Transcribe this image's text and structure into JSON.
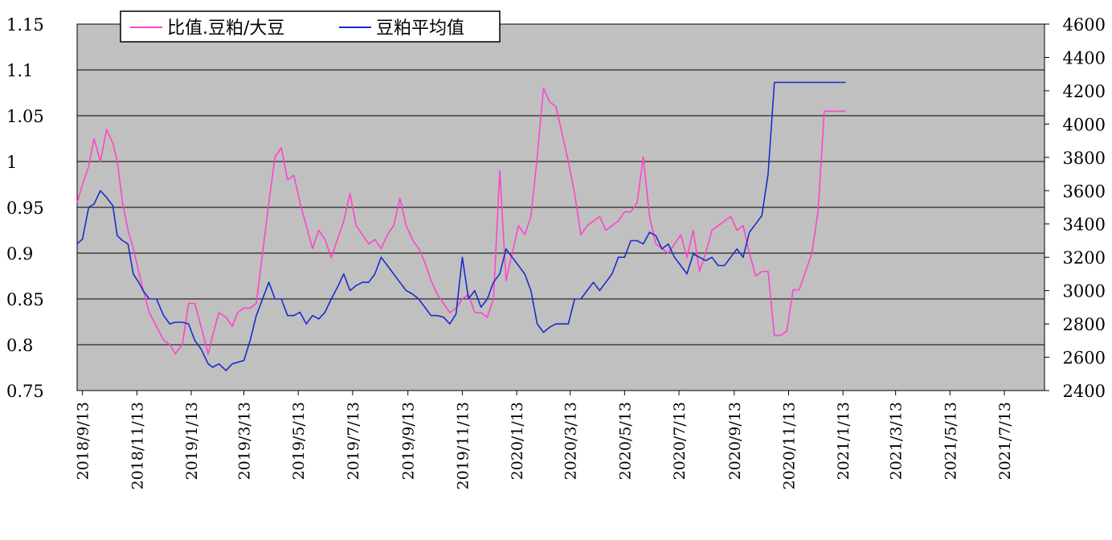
{
  "chart_data": {
    "type": "line",
    "title": "",
    "xlabel": "",
    "ylabel_left": "",
    "ylabel_right": "",
    "x_range": [
      "2018-09-07",
      "2021-08-27"
    ],
    "x_ticks": [
      "2018/9/13",
      "2018/11/13",
      "2019/1/13",
      "2019/3/13",
      "2019/5/13",
      "2019/7/13",
      "2019/9/13",
      "2019/11/13",
      "2020/1/13",
      "2020/3/13",
      "2020/5/13",
      "2020/7/13",
      "2020/9/13",
      "2020/11/13",
      "2021/1/13",
      "2021/3/13",
      "2021/5/13",
      "2021/7/13"
    ],
    "y_left": {
      "range": [
        0.75,
        1.15
      ],
      "ticks": [
        "0.75",
        "0.8",
        "0.85",
        "0.9",
        "0.95",
        "1",
        "1.05",
        "1.1",
        "1.15"
      ]
    },
    "y_right": {
      "range": [
        2400,
        4600
      ],
      "ticks": [
        "2400",
        "2600",
        "2800",
        "3000",
        "3200",
        "3400",
        "3600",
        "3800",
        "4000",
        "4200",
        "4400",
        "4600"
      ]
    },
    "grid": true,
    "legend_position": "top-left",
    "colors": {
      "plot_bg": "#c0c0c0",
      "ratio_line": "#ff44cc",
      "price_line": "#1a2ccc"
    },
    "series": [
      {
        "name": "比值.豆粕/大豆",
        "axis": "left",
        "x": [
          "2018-09-07",
          "2018-09-13",
          "2018-09-20",
          "2018-09-26",
          "2018-10-03",
          "2018-10-10",
          "2018-10-17",
          "2018-10-22",
          "2018-10-28",
          "2018-11-03",
          "2018-11-09",
          "2018-11-15",
          "2018-11-20",
          "2018-11-27",
          "2018-12-05",
          "2018-12-13",
          "2018-12-20",
          "2018-12-26",
          "2019-01-03",
          "2019-01-10",
          "2019-01-17",
          "2019-01-24",
          "2019-02-01",
          "2019-02-06",
          "2019-02-13",
          "2019-02-21",
          "2019-02-28",
          "2019-03-06",
          "2019-03-13",
          "2019-03-20",
          "2019-03-27",
          "2019-04-03",
          "2019-04-10",
          "2019-04-17",
          "2019-04-24",
          "2019-05-01",
          "2019-05-08",
          "2019-05-15",
          "2019-05-22",
          "2019-05-29",
          "2019-06-05",
          "2019-06-12",
          "2019-06-19",
          "2019-06-26",
          "2019-07-03",
          "2019-07-10",
          "2019-07-17",
          "2019-07-24",
          "2019-07-31",
          "2019-08-07",
          "2019-08-14",
          "2019-08-21",
          "2019-08-28",
          "2019-09-04",
          "2019-09-11",
          "2019-09-18",
          "2019-09-25",
          "2019-10-02",
          "2019-10-09",
          "2019-10-16",
          "2019-10-23",
          "2019-10-30",
          "2019-11-06",
          "2019-11-13",
          "2019-11-20",
          "2019-11-27",
          "2019-12-04",
          "2019-12-11",
          "2019-12-18",
          "2019-12-25",
          "2020-01-01",
          "2020-01-08",
          "2020-01-15",
          "2020-01-22",
          "2020-01-29",
          "2020-02-05",
          "2020-02-12",
          "2020-02-19",
          "2020-02-26",
          "2020-03-04",
          "2020-03-11",
          "2020-03-18",
          "2020-03-25",
          "2020-04-01",
          "2020-04-08",
          "2020-04-15",
          "2020-04-22",
          "2020-04-29",
          "2020-05-06",
          "2020-05-13",
          "2020-05-20",
          "2020-05-27",
          "2020-06-03",
          "2020-06-10",
          "2020-06-17",
          "2020-06-24",
          "2020-07-01",
          "2020-07-08",
          "2020-07-15",
          "2020-07-22",
          "2020-07-29",
          "2020-08-05",
          "2020-08-12",
          "2020-08-19",
          "2020-08-26",
          "2020-09-02",
          "2020-09-09",
          "2020-09-16",
          "2020-09-23",
          "2020-09-30",
          "2020-10-07",
          "2020-10-14",
          "2020-10-21",
          "2020-10-28",
          "2020-11-04",
          "2020-11-11",
          "2020-11-18",
          "2020-11-25",
          "2020-12-02",
          "2020-12-09",
          "2020-12-16",
          "2020-12-23",
          "2020-12-30",
          "2021-01-06",
          "2021-01-13",
          "2021-01-16"
        ],
        "values": [
          0.955,
          0.975,
          0.995,
          1.025,
          1.0,
          1.035,
          1.02,
          1.0,
          0.955,
          0.925,
          0.905,
          0.88,
          0.86,
          0.835,
          0.82,
          0.805,
          0.8,
          0.79,
          0.8,
          0.845,
          0.845,
          0.82,
          0.79,
          0.81,
          0.835,
          0.83,
          0.82,
          0.835,
          0.84,
          0.84,
          0.845,
          0.9,
          0.955,
          1.005,
          1.015,
          0.98,
          0.985,
          0.955,
          0.93,
          0.905,
          0.925,
          0.915,
          0.895,
          0.915,
          0.935,
          0.965,
          0.93,
          0.92,
          0.91,
          0.915,
          0.905,
          0.92,
          0.93,
          0.96,
          0.93,
          0.915,
          0.905,
          0.89,
          0.87,
          0.855,
          0.845,
          0.835,
          0.84,
          0.85,
          0.855,
          0.835,
          0.835,
          0.83,
          0.85,
          0.99,
          0.87,
          0.9,
          0.93,
          0.92,
          0.94,
          1.005,
          1.08,
          1.065,
          1.06,
          1.03,
          1.0,
          0.965,
          0.92,
          0.93,
          0.935,
          0.94,
          0.925,
          0.93,
          0.935,
          0.945,
          0.945,
          0.955,
          1.005,
          0.94,
          0.91,
          0.905,
          0.9,
          0.91,
          0.92,
          0.895,
          0.925,
          0.88,
          0.9,
          0.925,
          0.93,
          0.935,
          0.94,
          0.925,
          0.93,
          0.9,
          0.875,
          0.88,
          0.88,
          0.81,
          0.81,
          0.815,
          0.86,
          0.86,
          0.88,
          0.9,
          0.945,
          1.055,
          1.055,
          1.055,
          1.055,
          1.055
        ],
        "note_values": "ratio series read against left axis"
      },
      {
        "name": "豆粕平均值",
        "axis": "right",
        "x": [
          "2018-09-07",
          "2018-09-13",
          "2018-09-20",
          "2018-09-26",
          "2018-10-03",
          "2018-10-10",
          "2018-10-17",
          "2018-10-22",
          "2018-10-28",
          "2018-11-03",
          "2018-11-09",
          "2018-11-15",
          "2018-11-20",
          "2018-11-27",
          "2018-12-05",
          "2018-12-13",
          "2018-12-20",
          "2018-12-26",
          "2019-01-03",
          "2019-01-10",
          "2019-01-17",
          "2019-01-24",
          "2019-02-01",
          "2019-02-06",
          "2019-02-13",
          "2019-02-21",
          "2019-02-28",
          "2019-03-06",
          "2019-03-13",
          "2019-03-20",
          "2019-03-27",
          "2019-04-03",
          "2019-04-10",
          "2019-04-17",
          "2019-04-24",
          "2019-05-01",
          "2019-05-08",
          "2019-05-15",
          "2019-05-22",
          "2019-05-29",
          "2019-06-05",
          "2019-06-12",
          "2019-06-19",
          "2019-06-26",
          "2019-07-03",
          "2019-07-10",
          "2019-07-17",
          "2019-07-24",
          "2019-07-31",
          "2019-08-07",
          "2019-08-14",
          "2019-08-21",
          "2019-08-28",
          "2019-09-04",
          "2019-09-11",
          "2019-09-18",
          "2019-09-25",
          "2019-10-02",
          "2019-10-09",
          "2019-10-16",
          "2019-10-23",
          "2019-10-30",
          "2019-11-06",
          "2019-11-13",
          "2019-11-20",
          "2019-11-27",
          "2019-12-04",
          "2019-12-11",
          "2019-12-18",
          "2019-12-25",
          "2020-01-01",
          "2020-01-08",
          "2020-01-15",
          "2020-01-22",
          "2020-01-29",
          "2020-02-05",
          "2020-02-12",
          "2020-02-19",
          "2020-02-26",
          "2020-03-04",
          "2020-03-11",
          "2020-03-18",
          "2020-03-25",
          "2020-04-01",
          "2020-04-08",
          "2020-04-15",
          "2020-04-22",
          "2020-04-29",
          "2020-05-06",
          "2020-05-13",
          "2020-05-20",
          "2020-05-27",
          "2020-06-03",
          "2020-06-10",
          "2020-06-17",
          "2020-06-24",
          "2020-07-01",
          "2020-07-08",
          "2020-07-15",
          "2020-07-22",
          "2020-07-29",
          "2020-08-05",
          "2020-08-12",
          "2020-08-19",
          "2020-08-26",
          "2020-09-02",
          "2020-09-09",
          "2020-09-16",
          "2020-09-23",
          "2020-09-30",
          "2020-10-07",
          "2020-10-14",
          "2020-10-21",
          "2020-10-28",
          "2020-11-04",
          "2020-11-11",
          "2020-11-18",
          "2020-11-25",
          "2020-12-02",
          "2020-12-09",
          "2020-12-16",
          "2020-12-23",
          "2020-12-30",
          "2021-01-06",
          "2021-01-13",
          "2021-01-16"
        ],
        "values": [
          3280,
          3310,
          3500,
          3520,
          3600,
          3560,
          3510,
          3330,
          3300,
          3280,
          3100,
          3050,
          3000,
          2950,
          2950,
          2850,
          2800,
          2810,
          2810,
          2800,
          2700,
          2650,
          2560,
          2540,
          2560,
          2520,
          2560,
          2570,
          2580,
          2700,
          2850,
          2950,
          3050,
          2950,
          2950,
          2850,
          2850,
          2870,
          2800,
          2850,
          2830,
          2870,
          2950,
          3020,
          3100,
          3000,
          3030,
          3050,
          3050,
          3100,
          3200,
          3150,
          3100,
          3050,
          3000,
          2980,
          2950,
          2900,
          2850,
          2850,
          2840,
          2800,
          2860,
          3200,
          2950,
          3000,
          2900,
          2950,
          3050,
          3100,
          3250,
          3200,
          3150,
          3100,
          3000,
          2800,
          2750,
          2780,
          2800,
          2800,
          2800,
          2950,
          2950,
          3000,
          3050,
          3000,
          3050,
          3100,
          3200,
          3200,
          3300,
          3300,
          3280,
          3350,
          3330,
          3250,
          3280,
          3200,
          3150,
          3100,
          3220,
          3200,
          3180,
          3200,
          3150,
          3150,
          3200,
          3250,
          3200,
          3350,
          3400,
          3450,
          3700,
          4250,
          4250,
          4250,
          4250,
          4250,
          4250,
          4250,
          4250,
          4250,
          4250,
          4250,
          4250,
          4250
        ]
      }
    ]
  }
}
